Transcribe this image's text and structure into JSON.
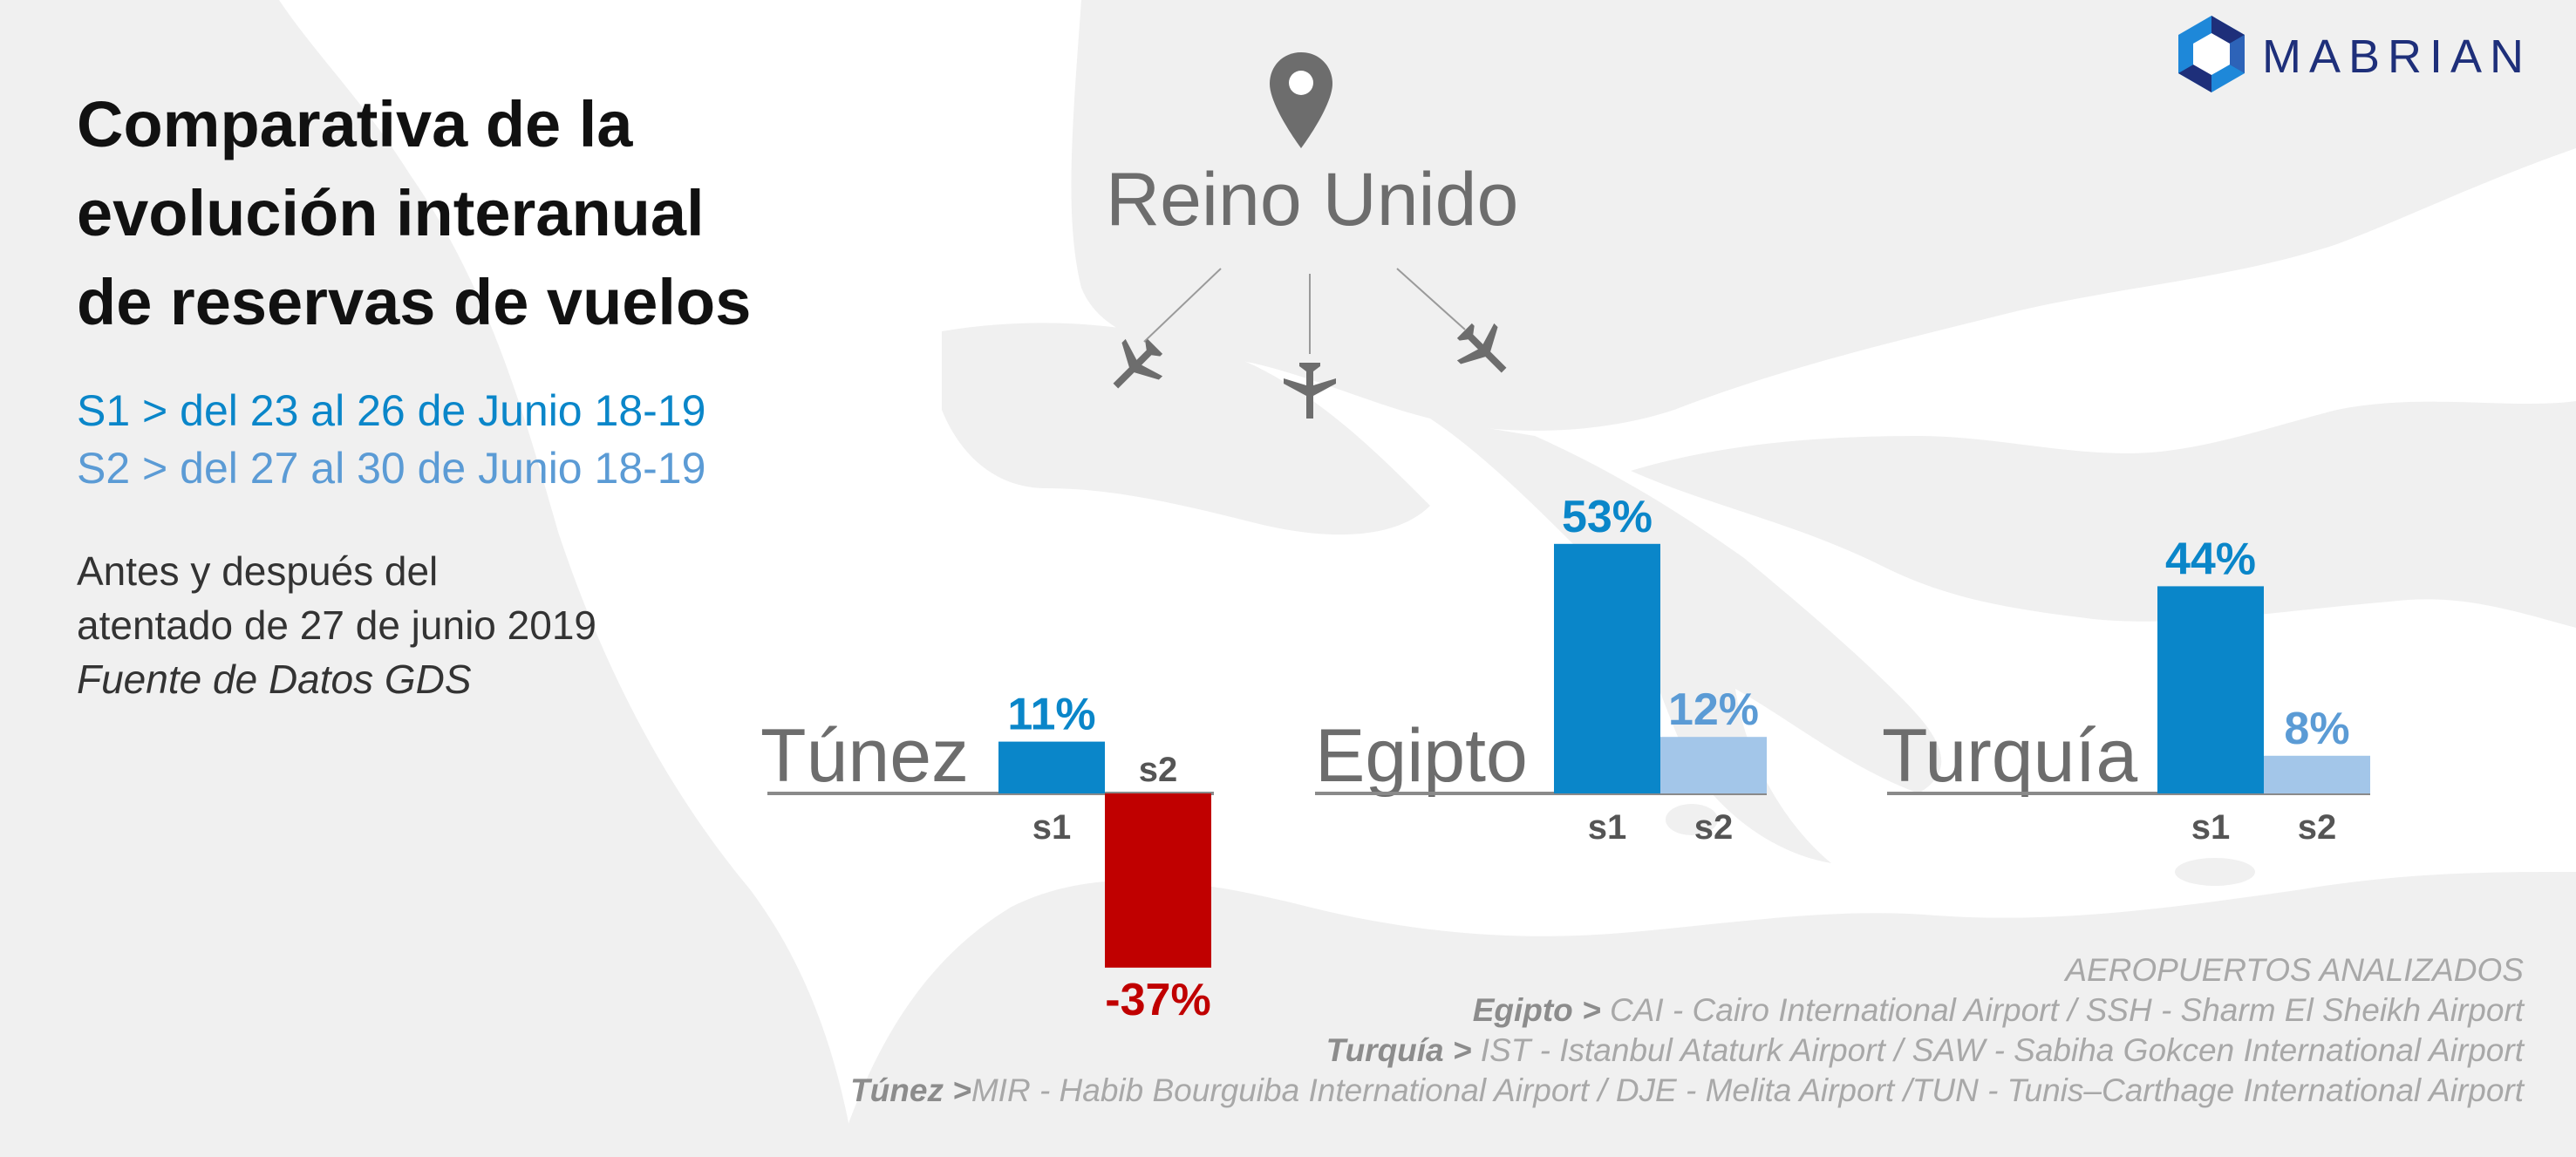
{
  "title_lines": [
    "Comparativa de la",
    "evolución interanual",
    "de reservas de vuelos"
  ],
  "legend": {
    "s1": "S1 > del 23 al 26 de Junio  18-19",
    "s2": "S2 > del 27 al 30 de Junio 18-19"
  },
  "note": {
    "line1": "Antes y después del",
    "line2": "atentado de 27 de junio 2019",
    "source": "Fuente de Datos GDS"
  },
  "origin": "Reino Unido",
  "logo": "MABRIAN",
  "airports": {
    "header": "AEROPUERTOS ANALIZADOS",
    "egipto_label": "Egipto >",
    "egipto_text": " CAI - Cairo International Airport / SSH - Sharm El Sheikh Airport",
    "turquia_label": "Turquía >",
    "turquia_text": " IST - Istanbul Ataturk Airport   / SAW - Sabiha Gokcen International Airport",
    "tunez_label": "Túnez >",
    "tunez_text": "MIR - Habib Bourguiba International Airport / DJE - Melita Airport /TUN - Tunis–Carthage International Airport"
  },
  "colors": {
    "s1": "#0a86c9",
    "s2_positive": "#a3c6e9",
    "s2_positive_label": "#5b9bd5",
    "negative": "#c00000",
    "map": "#f0f0f0",
    "axis": "#8a8a8a",
    "country": "#6d6d6d",
    "logo_dark": "#1e2f7a",
    "logo_light": "#1e88d9"
  },
  "icons": [
    "location-pin-icon",
    "airplane-icon",
    "mabrian-logo-icon"
  ],
  "chart_data": {
    "type": "bar",
    "categories": [
      "s1",
      "s2"
    ],
    "unit": "%",
    "groups": [
      {
        "country": "Túnez",
        "values": [
          11,
          -37
        ],
        "labels": [
          "11%",
          "-37%"
        ]
      },
      {
        "country": "Egipto",
        "values": [
          53,
          12
        ],
        "labels": [
          "53%",
          "12%"
        ]
      },
      {
        "country": "Turquía",
        "values": [
          44,
          8
        ],
        "labels": [
          "44%",
          "8%"
        ]
      }
    ]
  }
}
